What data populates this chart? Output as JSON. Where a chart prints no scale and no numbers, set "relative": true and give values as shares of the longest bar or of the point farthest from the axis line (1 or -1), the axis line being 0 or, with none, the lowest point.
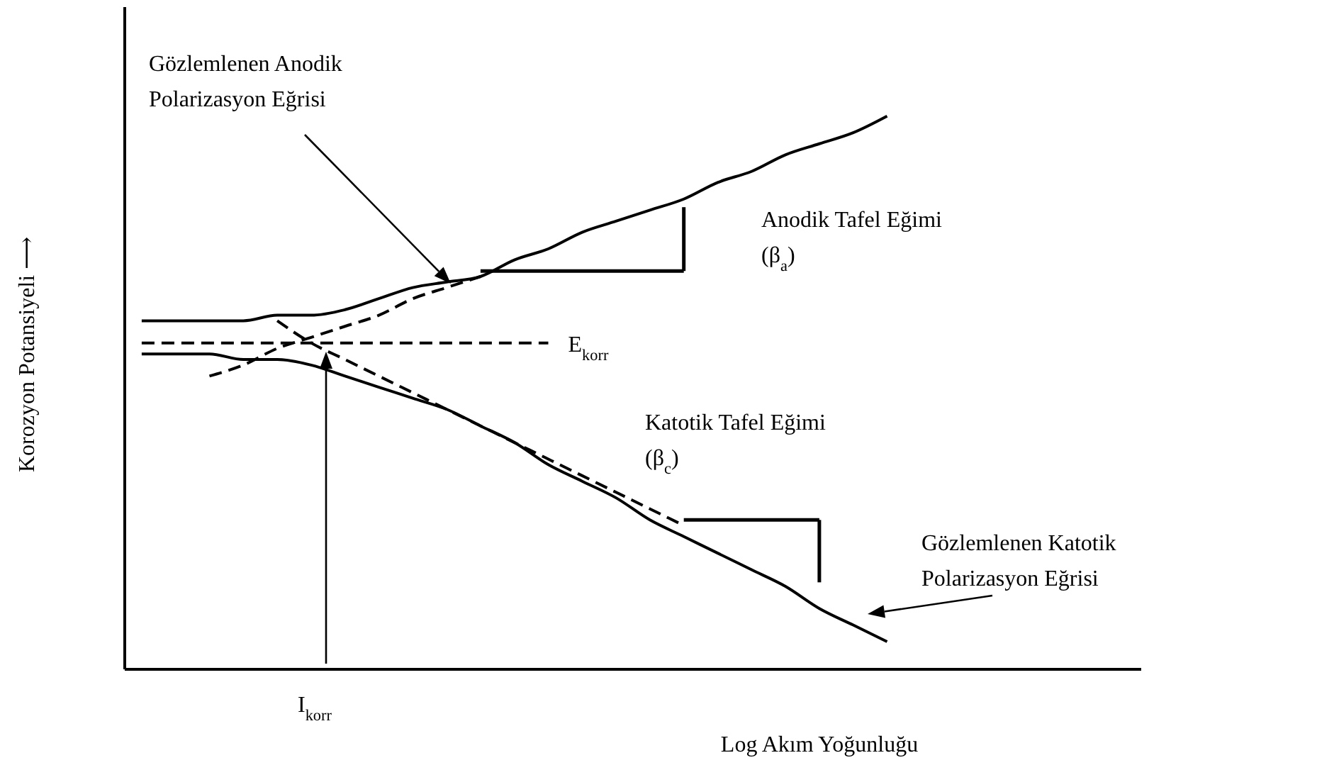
{
  "chart_data": {
    "type": "line",
    "relative": true,
    "xlabel": "Log Akım Yoğunluğu",
    "ylabel": "Korozyon Potansiyeli ⟶",
    "categories": [
      null,
      null,
      null,
      null,
      null,
      null,
      null,
      null,
      null,
      null,
      null,
      null,
      null,
      null,
      null,
      null,
      null,
      null,
      null,
      null,
      null,
      null,
      null,
      null,
      null,
      null,
      null,
      null,
      null,
      null
    ],
    "series": [
      {
        "color": "#000000",
        "line_style": "solid",
        "values": [
          0.63,
          0.63,
          0.63,
          0.63,
          0.64,
          0.64,
          0.65,
          0.67,
          0.69,
          0.7,
          0.71,
          0.74,
          0.76,
          0.79,
          0.81,
          0.83,
          0.85,
          0.88,
          0.9,
          0.93,
          0.95,
          0.97,
          1,
          null,
          null,
          null,
          null,
          null,
          null,
          null
        ]
      },
      {
        "color": "#000000",
        "line_style": "solid",
        "values": [
          0.57,
          0.57,
          0.57,
          0.56,
          0.56,
          0.55,
          0.53,
          0.51,
          0.49,
          0.47,
          0.44,
          0.41,
          0.37,
          0.34,
          0.31,
          0.27,
          0.24,
          0.21,
          0.18,
          0.15,
          0.11,
          0.08,
          0.05,
          null,
          null,
          null,
          null,
          null,
          null,
          null
        ]
      },
      {
        "color": "#000000",
        "line_style": "dashed",
        "values": [
          null,
          null,
          0.53,
          0.55,
          0.58,
          0.6,
          0.62,
          0.64,
          0.67,
          0.69,
          0.71,
          null,
          null,
          null,
          null,
          null,
          null,
          null,
          null,
          null,
          null,
          null,
          null,
          null,
          null,
          null,
          null,
          null,
          null,
          null
        ]
      },
      {
        "color": "#000000",
        "line_style": "dashed",
        "values": [
          null,
          null,
          null,
          null,
          0.63,
          0.59,
          0.56,
          0.53,
          0.5,
          0.47,
          0.44,
          0.41,
          0.38,
          0.35,
          0.32,
          0.29,
          0.26,
          null,
          null,
          null,
          null,
          null,
          null,
          null,
          null,
          null,
          null,
          null,
          null,
          null
        ]
      },
      {
        "color": "#000000",
        "line_style": "solid",
        "values": [
          null,
          null,
          null,
          null,
          null,
          null,
          null,
          null,
          null,
          null,
          0.72,
          0.72,
          0.72,
          0.72,
          0.72,
          0.72,
          0.72,
          null,
          null,
          null,
          null,
          null,
          null,
          null,
          null,
          null,
          null,
          null,
          null,
          null
        ]
      },
      {
        "color": "#000000",
        "line_style": "solid",
        "values": [
          null,
          null,
          null,
          null,
          null,
          null,
          null,
          null,
          null,
          null,
          null,
          null,
          null,
          null,
          null,
          null,
          0.27,
          0.27,
          0.27,
          0.27,
          0.27,
          null,
          null,
          null,
          null,
          null,
          null,
          null,
          null,
          null
        ]
      },
      {
        "name": "E$_{korr}$",
        "color": "#000000",
        "line_style": "dashed",
        "values": [
          0.59,
          0.59,
          0.59,
          0.59,
          0.59,
          0.59,
          0.59,
          0.59,
          0.59,
          0.59,
          0.59,
          0.59,
          0.59,
          null,
          null,
          null,
          null,
          null,
          null,
          null,
          null,
          null,
          null,
          null,
          null,
          null,
          null,
          null,
          null,
          null
        ]
      }
    ],
    "annotations": [
      "Gözlemlenen Anodik Polarizasyon Eğrisi",
      "Anodik Tafel Eğimi (β$_{a}$)",
      "Katotik Tafel Eğimi (β$_{c}$)",
      "Gözlemlenen Katotik Polarizasyon Eğrisi",
      "I$_{korr}$"
    ],
    "legend": false,
    "grid": false,
    "marker": "none"
  }
}
